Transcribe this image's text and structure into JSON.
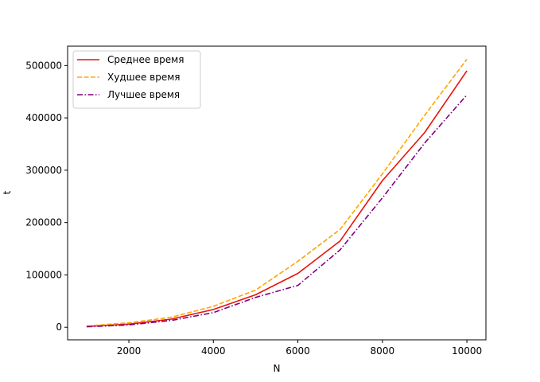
{
  "chart_data": {
    "type": "line",
    "x": [
      1000,
      2000,
      3000,
      4000,
      5000,
      6000,
      7000,
      8000,
      9000,
      10000
    ],
    "series": [
      {
        "name": "Среднее время",
        "color": "#e8120c",
        "dash": "solid",
        "values": [
          1500,
          6000,
          15500,
          34000,
          62000,
          103000,
          165000,
          280000,
          372000,
          490000
        ]
      },
      {
        "name": "Худшее время",
        "color": "#ffa500",
        "dash": "dashed",
        "values": [
          2500,
          8500,
          19000,
          40000,
          71000,
          126000,
          187000,
          293000,
          405000,
          512000
        ]
      },
      {
        "name": "Лучшее время",
        "color": "#800080",
        "dash": "dashdot",
        "values": [
          1000,
          4500,
          13000,
          28000,
          57000,
          80000,
          148000,
          247000,
          352000,
          444000
        ]
      }
    ],
    "xlabel": "N",
    "ylabel": "t",
    "xlim": [
      550,
      10450
    ],
    "ylim": [
      -24000,
      537000
    ],
    "xticks": [
      2000,
      4000,
      6000,
      8000,
      10000
    ],
    "yticks": [
      0,
      100000,
      200000,
      300000,
      400000,
      500000
    ],
    "grid": false,
    "legend": "top-left"
  }
}
